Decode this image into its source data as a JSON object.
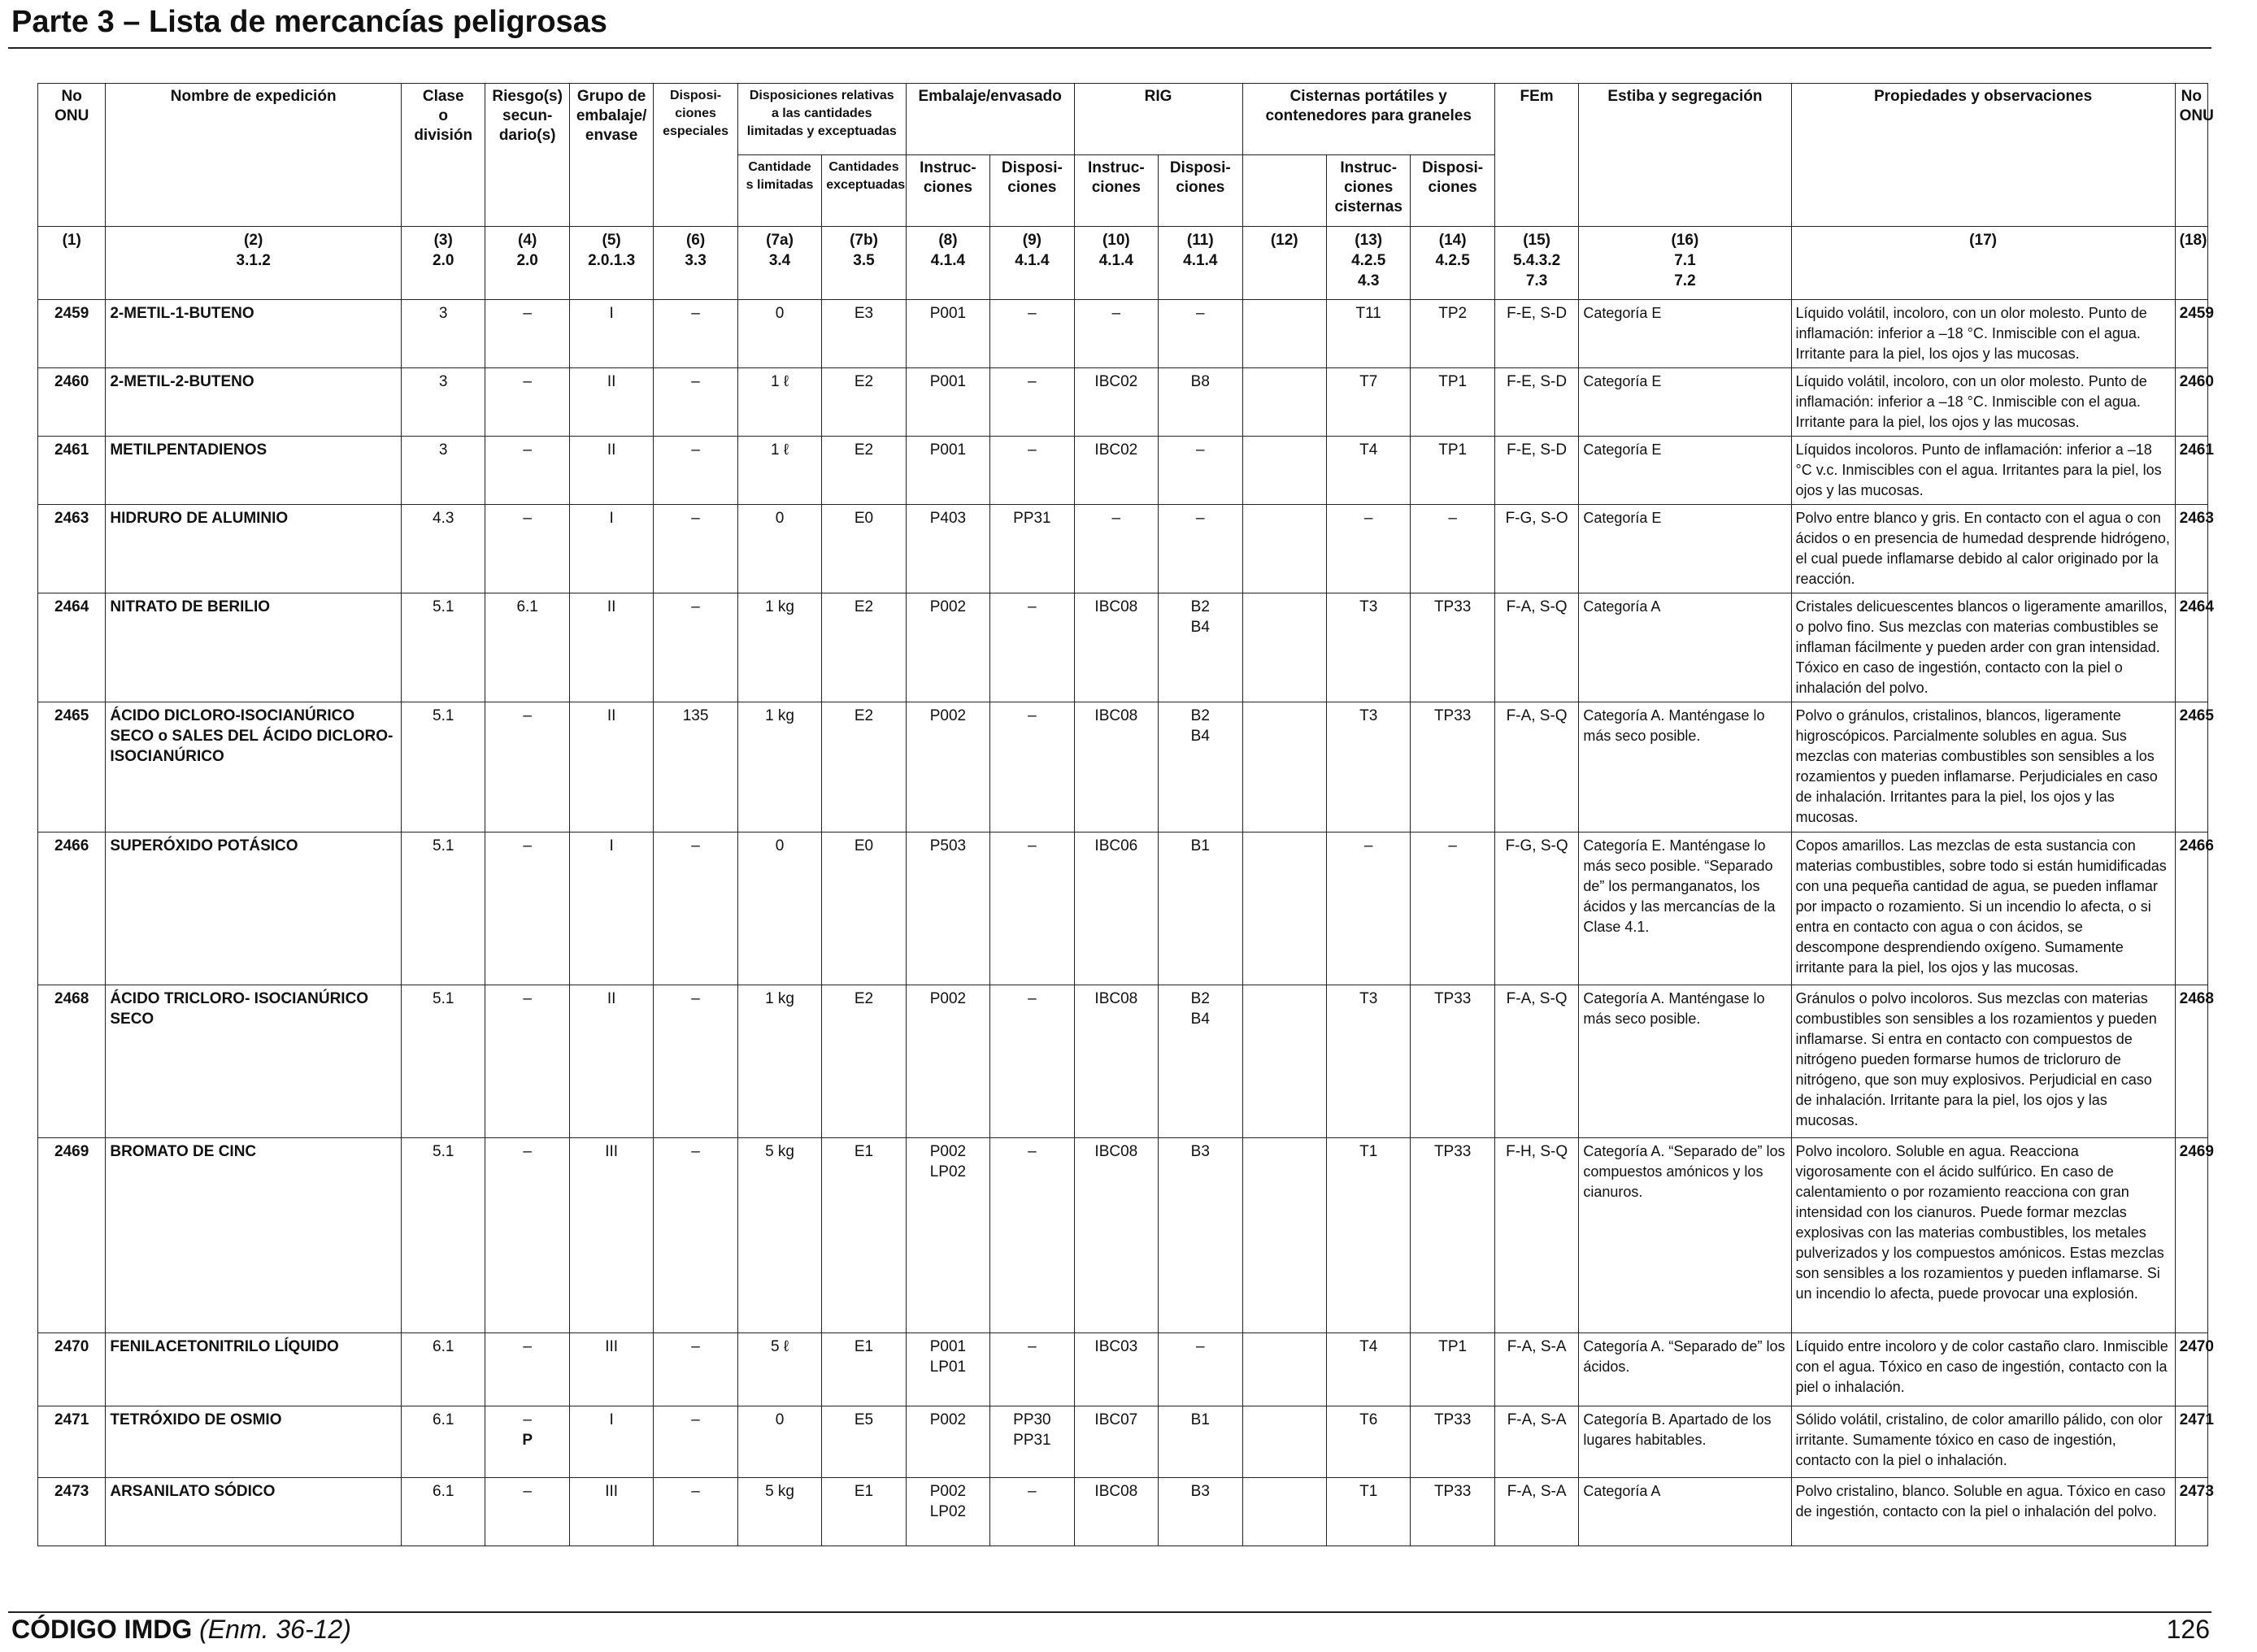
{
  "title": "Parte 3 – Lista de mercancías peligrosas",
  "footer": {
    "code": "CÓDIGO IMDG",
    "amendment": "(Enm. 36-12)",
    "page": "126"
  },
  "headers": {
    "no_onu": [
      "No",
      "ONU"
    ],
    "nombre": "Nombre de expedición",
    "clase": [
      "Clase",
      "o",
      "división"
    ],
    "riesgo": [
      "Riesgo(s)",
      "secun-",
      "dario(s)"
    ],
    "grupo": [
      "Grupo de",
      "embalaje/",
      "envase"
    ],
    "dispos_esp": [
      "Disposi-",
      "ciones",
      "especiales"
    ],
    "cantidades": [
      "Disposiciones relativas",
      "a las cantidades",
      "limitadas y exceptuadas"
    ],
    "cant_limitadas": [
      "Cantidade",
      "s limitadas"
    ],
    "cant_exceptuadas": [
      "Cantidades",
      "exceptuadas"
    ],
    "embalaje": "Embalaje/envasado",
    "instrucciones": [
      "Instruc-",
      "ciones"
    ],
    "disposiciones": [
      "Disposi-",
      "ciones"
    ],
    "rig": "RIG",
    "cisternas": [
      "Cisternas portátiles y",
      "contenedores para graneles"
    ],
    "instr_cisternas": [
      "Instruc-",
      "ciones",
      "cisternas"
    ],
    "fem": "FEm",
    "estiba": "Estiba y segregación",
    "propiedades": "Propiedades y observaciones",
    "no_onu_right": [
      "No",
      "ONU"
    ]
  },
  "ref_row": [
    [
      "(1)"
    ],
    [
      "(2)",
      "3.1.2"
    ],
    [
      "(3)",
      "2.0"
    ],
    [
      "(4)",
      "2.0"
    ],
    [
      "(5)",
      "2.0.1.3"
    ],
    [
      "(6)",
      "3.3"
    ],
    [
      "(7a)",
      "3.4"
    ],
    [
      "(7b)",
      "3.5"
    ],
    [
      "(8)",
      "4.1.4"
    ],
    [
      "(9)",
      "4.1.4"
    ],
    [
      "(10)",
      "4.1.4"
    ],
    [
      "(11)",
      "4.1.4"
    ],
    [
      "(12)"
    ],
    [
      "(13)",
      "4.2.5",
      "4.3"
    ],
    [
      "(14)",
      "4.2.5"
    ],
    [
      "(15)",
      "5.4.3.2",
      "7.3"
    ],
    [
      "(16)",
      "7.1",
      "7.2"
    ],
    [
      "(17)"
    ],
    [
      "(18)"
    ]
  ],
  "rows": [
    {
      "un": "2459",
      "name": "2-METIL-1-BUTENO",
      "class": "3",
      "sub": [
        "–"
      ],
      "pg": "I",
      "sp": "–",
      "lq": "0",
      "eq": "E3",
      "pi": [
        "P001"
      ],
      "pp": [
        "–"
      ],
      "ibc": "–",
      "ibcp": [
        "–"
      ],
      "c12": "",
      "tank": "T11",
      "tankp": "TP2",
      "ems": "F-E, S-D",
      "stow": "Categoría E",
      "props": "Líquido volátil, incoloro, con un olor molesto. Punto de inflamación: inferior a –18 °C. Inmiscible con el agua. Irritante para la piel, los ojos y las mucosas."
    },
    {
      "un": "2460",
      "name": "2-METIL-2-BUTENO",
      "class": "3",
      "sub": [
        "–"
      ],
      "pg": "II",
      "sp": "–",
      "lq": "1 ℓ",
      "eq": "E2",
      "pi": [
        "P001"
      ],
      "pp": [
        "–"
      ],
      "ibc": "IBC02",
      "ibcp": [
        "B8"
      ],
      "c12": "",
      "tank": "T7",
      "tankp": "TP1",
      "ems": "F-E, S-D",
      "stow": "Categoría E",
      "props": "Líquido volátil, incoloro, con un olor molesto. Punto de inflamación: inferior a –18 °C. Inmiscible con el agua. Irritante para la piel, los ojos y las mucosas."
    },
    {
      "un": "2461",
      "name": "METILPENTADIENOS",
      "class": "3",
      "sub": [
        "–"
      ],
      "pg": "II",
      "sp": "–",
      "lq": "1 ℓ",
      "eq": "E2",
      "pi": [
        "P001"
      ],
      "pp": [
        "–"
      ],
      "ibc": "IBC02",
      "ibcp": [
        "–"
      ],
      "c12": "",
      "tank": "T4",
      "tankp": "TP1",
      "ems": "F-E, S-D",
      "stow": "Categoría E",
      "props": "Líquidos incoloros. Punto de inflamación: inferior a –18 °C v.c. Inmiscibles con el agua. Irritantes para la piel, los ojos y las mucosas."
    },
    {
      "un": "2463",
      "name": "HIDRURO DE ALUMINIO",
      "class": "4.3",
      "sub": [
        "–"
      ],
      "pg": "I",
      "sp": "–",
      "lq": "0",
      "eq": "E0",
      "pi": [
        "P403"
      ],
      "pp": [
        "PP31"
      ],
      "ibc": "–",
      "ibcp": [
        "–"
      ],
      "c12": "",
      "tank": "–",
      "tankp": "–",
      "ems": "F-G, S-O",
      "stow": "Categoría E",
      "props": "Polvo entre blanco y gris. En contacto con el agua o con ácidos o en presencia de humedad desprende hidrógeno, el cual puede inflamarse debido al calor originado por la reacción."
    },
    {
      "un": "2464",
      "name": "NITRATO DE BERILIO",
      "class": "5.1",
      "sub": [
        "6.1"
      ],
      "pg": "II",
      "sp": "–",
      "lq": "1 kg",
      "eq": "E2",
      "pi": [
        "P002"
      ],
      "pp": [
        "–"
      ],
      "ibc": "IBC08",
      "ibcp": [
        "B2",
        "B4"
      ],
      "c12": "",
      "tank": "T3",
      "tankp": "TP33",
      "ems": "F-A, S-Q",
      "stow": "Categoría A",
      "props": "Cristales delicuescentes blancos o ligeramente amarillos, o polvo fino. Sus mezclas con materias combustibles se inflaman fácilmente y pueden arder con gran intensidad. Tóxico en caso de ingestión, contacto con la piel o inhalación del polvo."
    },
    {
      "un": "2465",
      "name": "ÁCIDO DICLORO-ISOCIANÚRICO SECO o SALES DEL ÁCIDO DICLORO-ISOCIANÚRICO",
      "class": "5.1",
      "sub": [
        "–"
      ],
      "pg": "II",
      "sp": "135",
      "lq": "1 kg",
      "eq": "E2",
      "pi": [
        "P002"
      ],
      "pp": [
        "–"
      ],
      "ibc": "IBC08",
      "ibcp": [
        "B2",
        "B4"
      ],
      "c12": "",
      "tank": "T3",
      "tankp": "TP33",
      "ems": "F-A, S-Q",
      "stow": "Categoría A. Manténgase lo más seco posible.",
      "props": "Polvo o gránulos, cristalinos, blancos, ligeramente higroscópicos. Parcialmente solubles en agua. Sus mezclas con materias combustibles son sensibles a los rozamientos y pueden inflamarse. Perjudiciales en caso de inhalación. Irritantes para la piel, los ojos y las mucosas."
    },
    {
      "un": "2466",
      "name": "SUPERÓXIDO POTÁSICO",
      "class": "5.1",
      "sub": [
        "–"
      ],
      "pg": "I",
      "sp": "–",
      "lq": "0",
      "eq": "E0",
      "pi": [
        "P503"
      ],
      "pp": [
        "–"
      ],
      "ibc": "IBC06",
      "ibcp": [
        "B1"
      ],
      "c12": "",
      "tank": "–",
      "tankp": "–",
      "ems": "F-G, S-Q",
      "stow": "Categoría E. Manténgase lo más seco posible. “Separado de” los permanganatos, los ácidos y las mercancías de la Clase 4.1.",
      "props": "Copos amarillos. Las mezclas de esta sustancia con materias combustibles, sobre todo si están humidificadas con una pequeña cantidad de agua, se pueden inflamar por impacto o rozamiento. Si un incendio lo afecta, o si entra en contacto con agua o con ácidos, se descompone desprendiendo oxígeno. Sumamente irritante para la piel, los ojos y las mucosas."
    },
    {
      "un": "2468",
      "name": "ÁCIDO TRICLORO- ISOCIANÚRICO SECO",
      "class": "5.1",
      "sub": [
        "–"
      ],
      "pg": "II",
      "sp": "–",
      "lq": "1 kg",
      "eq": "E2",
      "pi": [
        "P002"
      ],
      "pp": [
        "–"
      ],
      "ibc": "IBC08",
      "ibcp": [
        "B2",
        "B4"
      ],
      "c12": "",
      "tank": "T3",
      "tankp": "TP33",
      "ems": "F-A, S-Q",
      "stow": "Categoría A. Manténgase lo más seco posible.",
      "props": "Gránulos o polvo incoloros. Sus mezclas con materias combustibles son sensibles a los rozamientos y pueden inflamarse. Si entra en contacto con compuestos de nitrógeno pueden formarse humos de tricloruro de nitrógeno, que son muy explosivos. Perjudicial en caso de inhalación. Irritante para la piel, los ojos y las mucosas."
    },
    {
      "un": "2469",
      "name": "BROMATO DE CINC",
      "class": "5.1",
      "sub": [
        "–"
      ],
      "pg": "III",
      "sp": "–",
      "lq": "5 kg",
      "eq": "E1",
      "pi": [
        "P002",
        "LP02"
      ],
      "pp": [
        "–"
      ],
      "ibc": "IBC08",
      "ibcp": [
        "B3"
      ],
      "c12": "",
      "tank": "T1",
      "tankp": "TP33",
      "ems": "F-H, S-Q",
      "stow": "Categoría A. “Separado de” los compuestos amónicos y los cianuros.",
      "props": "Polvo incoloro. Soluble en agua. Reacciona vigorosamente con el ácido sulfúrico. En caso de calentamiento o por rozamiento reacciona con gran intensidad con los cianuros. Puede formar mezclas explosivas con las materias combustibles, los metales pulverizados y los compuestos amónicos. Estas mezclas son sensibles a los rozamientos y pueden inflamarse. Si un incendio lo afecta, puede provocar una explosión."
    },
    {
      "un": "2470",
      "name": "FENILACETONITRILO LÍQUIDO",
      "class": "6.1",
      "sub": [
        "–"
      ],
      "pg": "III",
      "sp": "–",
      "lq": "5 ℓ",
      "eq": "E1",
      "pi": [
        "P001",
        "LP01"
      ],
      "pp": [
        "–"
      ],
      "ibc": "IBC03",
      "ibcp": [
        "–"
      ],
      "c12": "",
      "tank": "T4",
      "tankp": "TP1",
      "ems": "F-A, S-A",
      "stow": "Categoría A. “Separado de” los ácidos.",
      "props": "Líquido entre incoloro y de color castaño claro. Inmiscible con el agua. Tóxico en caso de ingestión, contacto con la piel o inhalación."
    },
    {
      "un": "2471",
      "name": "TETRÓXIDO DE OSMIO",
      "class": "6.1",
      "sub": [
        "–",
        "P"
      ],
      "pg": "I",
      "sp": "–",
      "lq": "0",
      "eq": "E5",
      "pi": [
        "P002"
      ],
      "pp": [
        "PP30",
        "PP31"
      ],
      "ibc": "IBC07",
      "ibcp": [
        "B1"
      ],
      "c12": "",
      "tank": "T6",
      "tankp": "TP33",
      "ems": "F-A, S-A",
      "stow": "Categoría B. Apartado de los lugares habitables.",
      "props": "Sólido volátil, cristalino, de color amarillo pálido, con olor irritante. Sumamente tóxico en caso de ingestión, contacto con la piel o inhalación."
    },
    {
      "un": "2473",
      "name": "ARSANILATO SÓDICO",
      "class": "6.1",
      "sub": [
        "–"
      ],
      "pg": "III",
      "sp": "–",
      "lq": "5 kg",
      "eq": "E1",
      "pi": [
        "P002",
        "LP02"
      ],
      "pp": [
        "–"
      ],
      "ibc": "IBC08",
      "ibcp": [
        "B3"
      ],
      "c12": "",
      "tank": "T1",
      "tankp": "TP33",
      "ems": "F-A, S-A",
      "stow": "Categoría A",
      "props": "Polvo cristalino, blanco. Soluble en agua. Tóxico en caso de ingestión, contacto con la piel o inhalación del polvo."
    }
  ]
}
